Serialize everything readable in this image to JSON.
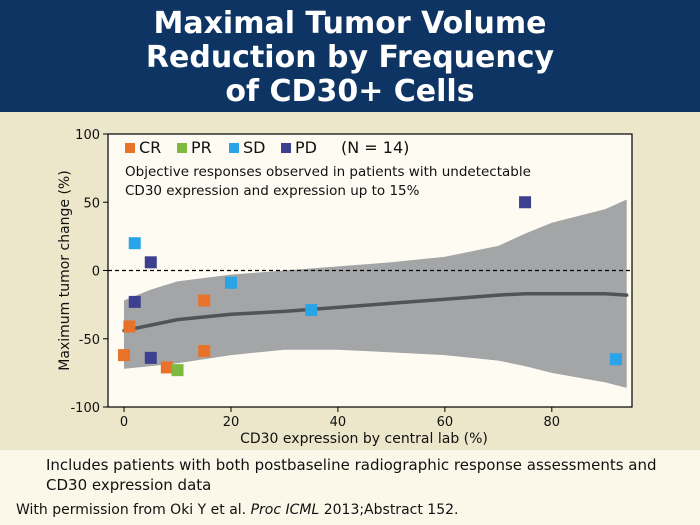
{
  "header": {
    "title_lines": [
      "Maximal Tumor Volume",
      "Reduction by Frequency",
      "of CD30+ Cells"
    ]
  },
  "colors": {
    "header_bg": "#0e3463",
    "CR": "#e8722a",
    "PR": "#7dba3f",
    "SD": "#2aa4e8",
    "PD": "#3d3f8f",
    "confidence_band": "#a3a5a6",
    "trend_line": "#505457"
  },
  "chart_data": {
    "type": "scatter",
    "xlabel": "CD30 expression by central lab (%)",
    "ylabel": "Maximum tumor change (%)",
    "xlim": [
      -3,
      95
    ],
    "ylim": [
      -100,
      100
    ],
    "xticks": [
      0,
      20,
      40,
      60,
      80
    ],
    "yticks": [
      100,
      50,
      0,
      -50,
      -100
    ],
    "grid": false,
    "reference_line": {
      "y": 0,
      "style": "dashed"
    },
    "legend": {
      "items": [
        {
          "label": "CR",
          "color": "#e8722a"
        },
        {
          "label": "PR",
          "color": "#7dba3f"
        },
        {
          "label": "SD",
          "color": "#2aa4e8"
        },
        {
          "label": "PD",
          "color": "#3d3f8f"
        }
      ],
      "n_label": "(N = 14)",
      "annotation_lines": [
        "Objective responses observed in patients with undetectable",
        "CD30 expression and expression up to 15%"
      ],
      "placement": "top-left"
    },
    "series": [
      {
        "name": "CR",
        "color": "#e8722a",
        "points": [
          [
            0,
            -62
          ],
          [
            1,
            -41
          ],
          [
            8,
            -71
          ],
          [
            15,
            -22
          ],
          [
            15,
            -59
          ]
        ]
      },
      {
        "name": "PR",
        "color": "#7dba3f",
        "points": [
          [
            10,
            -73
          ]
        ]
      },
      {
        "name": "SD",
        "color": "#2aa4e8",
        "points": [
          [
            2,
            20
          ],
          [
            20,
            -9
          ],
          [
            35,
            -29
          ],
          [
            92,
            -65
          ]
        ]
      },
      {
        "name": "PD",
        "color": "#3d3f8f",
        "points": [
          [
            2,
            -23
          ],
          [
            5,
            6
          ],
          [
            5,
            -64
          ],
          [
            75,
            50
          ]
        ]
      }
    ],
    "trend": {
      "x": [
        0,
        5,
        10,
        20,
        30,
        40,
        50,
        60,
        70,
        75,
        80,
        90,
        94
      ],
      "y": [
        -44,
        -40,
        -36,
        -32,
        -30,
        -27,
        -24,
        -21,
        -18,
        -17,
        -17,
        -17,
        -18
      ],
      "upper": [
        -22,
        -14,
        -8,
        -3,
        0,
        3,
        6,
        10,
        18,
        27,
        35,
        45,
        52
      ],
      "lower": [
        -72,
        -70,
        -68,
        -62,
        -58,
        -58,
        -60,
        -62,
        -66,
        -70,
        -75,
        -82,
        -86
      ]
    }
  },
  "footnote": "Includes patients with both postbaseline radiographic response assessments and CD30 expression data",
  "citation": {
    "prefix": "With permission from Oki Y et al. ",
    "journal": "Proc ICML",
    "suffix": " 2013;Abstract 152."
  }
}
